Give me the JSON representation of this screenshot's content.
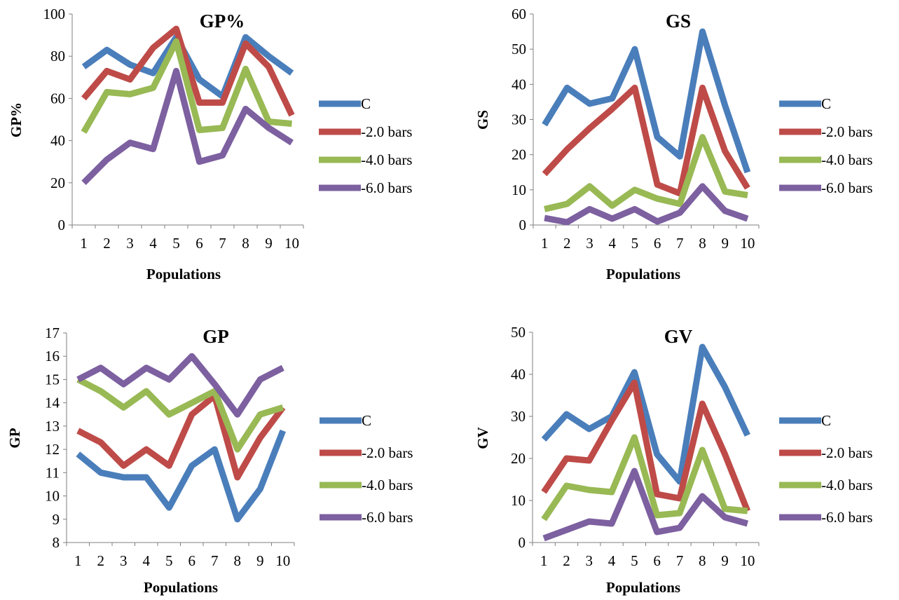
{
  "chart_data": [
    {
      "type": "line",
      "title": "GP%",
      "xlabel": "Populations",
      "ylabel": "GP%",
      "categories": [
        "1",
        "2",
        "3",
        "4",
        "5",
        "6",
        "7",
        "8",
        "9",
        "10"
      ],
      "ylim": [
        0,
        100
      ],
      "yticks": [
        "0",
        "20",
        "40",
        "60",
        "80",
        "100"
      ],
      "legend_position": "right",
      "series": [
        {
          "name": "C",
          "color": "#4a7ebb",
          "values": [
            75,
            83,
            76,
            72,
            89,
            69,
            61,
            89,
            80,
            72
          ]
        },
        {
          "name": "-2.0 bars",
          "color": "#be4b48",
          "values": [
            60,
            73,
            69,
            84,
            93,
            58,
            58,
            86,
            75,
            52
          ]
        },
        {
          "name": "-4.0 bars",
          "color": "#98b954",
          "values": [
            44,
            63,
            62,
            65,
            87,
            45,
            46,
            74,
            49,
            48
          ]
        },
        {
          "name": "-6.0 bars",
          "color": "#7d60a0",
          "values": [
            20,
            31,
            39,
            36,
            73,
            30,
            33,
            55,
            46,
            39
          ]
        }
      ]
    },
    {
      "type": "line",
      "title": "GS",
      "xlabel": "Populations",
      "ylabel": "GS",
      "categories": [
        "1",
        "2",
        "3",
        "4",
        "5",
        "6",
        "7",
        "8",
        "9",
        "10"
      ],
      "ylim": [
        0,
        60
      ],
      "yticks": [
        "0",
        "10",
        "20",
        "30",
        "40",
        "50",
        "60"
      ],
      "legend_position": "right",
      "series": [
        {
          "name": "C",
          "color": "#4a7ebb",
          "values": [
            28.5,
            39,
            34.5,
            36,
            50,
            25,
            19.5,
            55,
            34,
            15
          ]
        },
        {
          "name": "-2.0 bars",
          "color": "#be4b48",
          "values": [
            14.5,
            21.5,
            27.5,
            33,
            39,
            11.5,
            9,
            39,
            21,
            10.5
          ]
        },
        {
          "name": "-4.0 bars",
          "color": "#98b954",
          "values": [
            4.5,
            6,
            11,
            5.5,
            10,
            7.5,
            6,
            25,
            9.5,
            8.5
          ]
        },
        {
          "name": "-6.0 bars",
          "color": "#7d60a0",
          "values": [
            2,
            0.8,
            4.5,
            1.8,
            4.5,
            1,
            3.5,
            11,
            4,
            1.8
          ]
        }
      ]
    },
    {
      "type": "line",
      "title": "GP",
      "xlabel": "Populations",
      "ylabel": "GP",
      "categories": [
        "1",
        "2",
        "3",
        "4",
        "5",
        "6",
        "7",
        "8",
        "9",
        "10"
      ],
      "ylim": [
        8,
        17
      ],
      "yticks": [
        "8",
        "9",
        "10",
        "11",
        "12",
        "13",
        "14",
        "15",
        "16",
        "17"
      ],
      "legend_position": "right",
      "series": [
        {
          "name": "C",
          "color": "#4a7ebb",
          "values": [
            11.8,
            11,
            10.8,
            10.8,
            9.5,
            11.3,
            12,
            9,
            10.3,
            12.8
          ]
        },
        {
          "name": "-2.0 bars",
          "color": "#be4b48",
          "values": [
            12.8,
            12.3,
            11.3,
            12,
            11.3,
            13.5,
            14.3,
            10.8,
            12.5,
            13.8
          ]
        },
        {
          "name": "-4.0 bars",
          "color": "#98b954",
          "values": [
            15,
            14.5,
            13.8,
            14.5,
            13.5,
            14,
            14.5,
            12,
            13.5,
            13.8
          ]
        },
        {
          "name": "-6.0 bars",
          "color": "#7d60a0",
          "values": [
            15,
            15.5,
            14.8,
            15.5,
            15,
            16,
            14.8,
            13.5,
            15,
            15.5
          ]
        }
      ]
    },
    {
      "type": "line",
      "title": "GV",
      "xlabel": "Populations",
      "ylabel": "GV",
      "categories": [
        "1",
        "2",
        "3",
        "4",
        "5",
        "6",
        "7",
        "8",
        "9",
        "10"
      ],
      "ylim": [
        0,
        50
      ],
      "yticks": [
        "0",
        "10",
        "20",
        "30",
        "40",
        "50"
      ],
      "legend_position": "right",
      "series": [
        {
          "name": "C",
          "color": "#4a7ebb",
          "values": [
            24.5,
            30.5,
            27,
            30,
            40.5,
            21,
            14.5,
            46.5,
            37,
            25.5
          ]
        },
        {
          "name": "-2.0 bars",
          "color": "#be4b48",
          "values": [
            12,
            20,
            19.5,
            29,
            38,
            11.5,
            10.5,
            33,
            21,
            7.5
          ]
        },
        {
          "name": "-4.0 bars",
          "color": "#98b954",
          "values": [
            5.5,
            13.5,
            12.5,
            12,
            25,
            6.5,
            7,
            22,
            8,
            7.5
          ]
        },
        {
          "name": "-6.0 bars",
          "color": "#7d60a0",
          "values": [
            1,
            3,
            5,
            4.5,
            17,
            2.5,
            3.5,
            11,
            6,
            4.5
          ]
        }
      ]
    }
  ]
}
